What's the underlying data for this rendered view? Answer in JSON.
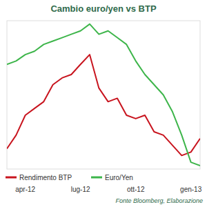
{
  "chart_data": {
    "type": "line",
    "title": "Cambio euro/yen vs BTP",
    "source": "Fonte Bloomberg, Elaborazione",
    "categories": [
      null,
      null,
      "apr-12",
      null,
      null,
      null,
      null,
      null,
      "lug-12",
      null,
      null,
      null,
      null,
      null,
      "ott-12",
      null,
      null,
      null,
      null,
      null,
      "gen-13",
      null
    ],
    "series": [
      {
        "name": "Rendimento BTP",
        "color": "#c8141e",
        "values": [
          3.98,
          4.3,
          4.77,
          4.93,
          5.09,
          5.49,
          5.65,
          5.73,
          5.97,
          6.2,
          5.41,
          5.09,
          5.17,
          4.77,
          4.69,
          4.77,
          4.38,
          4.3,
          4.06,
          3.82,
          3.9,
          4.22
        ]
      },
      {
        "name": "Euro/Yen",
        "color": "#3db54a",
        "axis": "y2",
        "values": [
          105.3,
          104.5,
          103.0,
          102.2,
          100.6,
          99.8,
          99.0,
          98.2,
          97.4,
          95.8,
          98.2,
          97.4,
          99.0,
          100.6,
          104.5,
          107.7,
          110.1,
          112.5,
          116.5,
          122.0,
          128.4,
          129.2
        ]
      }
    ],
    "ylim": [
      3.5,
      7
    ],
    "y2lim": [
      130,
      95
    ],
    "tick_labels": "x",
    "grid": false,
    "legend": "bottom"
  }
}
